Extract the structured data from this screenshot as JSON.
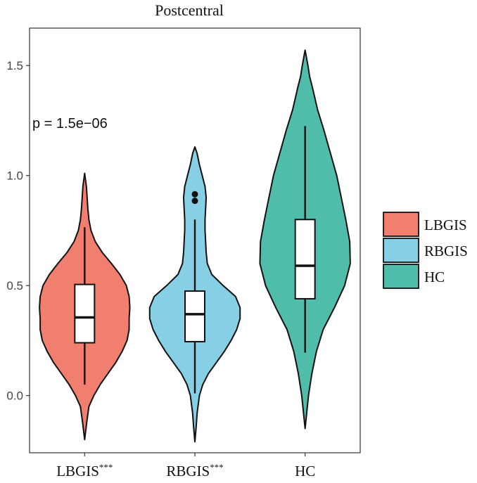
{
  "chart_data": {
    "type": "violin",
    "title": "Postcentral",
    "xlabel": "",
    "ylabel": "",
    "ylim": [
      -0.26,
      1.67
    ],
    "yticks": [
      0.0,
      0.5,
      1.0,
      1.5
    ],
    "ytick_labels": [
      "0.0",
      "0.5",
      "1.0",
      "1.5"
    ],
    "annotation": "p = 1.5e−06",
    "legend": {
      "position": "right",
      "entries": [
        {
          "label": "LBGIS",
          "color": "#F07F6F"
        },
        {
          "label": "RBGIS",
          "color": "#86CFE5"
        },
        {
          "label": "HC",
          "color": "#4FBDA9"
        }
      ]
    },
    "groups": [
      {
        "name": "LBGIS",
        "label": "LBGIS",
        "superscript": "***",
        "color": "#F07F6F",
        "box": {
          "whisker_low": 0.05,
          "q1": 0.24,
          "median": 0.355,
          "q3": 0.505,
          "whisker_high": 0.765
        },
        "outliers": [],
        "violin": [
          [
            -0.2,
            0.0
          ],
          [
            -0.12,
            0.03
          ],
          [
            -0.05,
            0.06
          ],
          [
            0.0,
            0.13
          ],
          [
            0.05,
            0.22
          ],
          [
            0.1,
            0.33
          ],
          [
            0.15,
            0.44
          ],
          [
            0.2,
            0.53
          ],
          [
            0.25,
            0.6
          ],
          [
            0.3,
            0.63
          ],
          [
            0.35,
            0.63
          ],
          [
            0.4,
            0.64
          ],
          [
            0.45,
            0.63
          ],
          [
            0.5,
            0.59
          ],
          [
            0.55,
            0.5
          ],
          [
            0.6,
            0.38
          ],
          [
            0.65,
            0.25
          ],
          [
            0.7,
            0.15
          ],
          [
            0.75,
            0.09
          ],
          [
            0.8,
            0.06
          ],
          [
            0.85,
            0.045
          ],
          [
            0.9,
            0.035
          ],
          [
            0.95,
            0.025
          ],
          [
            1.01,
            0.0
          ]
        ]
      },
      {
        "name": "RBGIS",
        "label": "RBGIS",
        "superscript": "***",
        "color": "#86CFE5",
        "box": {
          "whisker_low": 0.01,
          "q1": 0.245,
          "median": 0.37,
          "q3": 0.475,
          "whisker_high": 0.8
        },
        "outliers": [
          0.885,
          0.915
        ],
        "violin": [
          [
            -0.21,
            0.0
          ],
          [
            -0.15,
            0.02
          ],
          [
            -0.08,
            0.04
          ],
          [
            0.0,
            0.08
          ],
          [
            0.05,
            0.14
          ],
          [
            0.1,
            0.24
          ],
          [
            0.15,
            0.38
          ],
          [
            0.2,
            0.52
          ],
          [
            0.25,
            0.64
          ],
          [
            0.3,
            0.74
          ],
          [
            0.35,
            0.8
          ],
          [
            0.4,
            0.8
          ],
          [
            0.45,
            0.72
          ],
          [
            0.5,
            0.5
          ],
          [
            0.55,
            0.3
          ],
          [
            0.6,
            0.22
          ],
          [
            0.65,
            0.2
          ],
          [
            0.7,
            0.19
          ],
          [
            0.75,
            0.18
          ],
          [
            0.8,
            0.18
          ],
          [
            0.85,
            0.19
          ],
          [
            0.9,
            0.2
          ],
          [
            0.95,
            0.18
          ],
          [
            1.0,
            0.13
          ],
          [
            1.05,
            0.08
          ],
          [
            1.1,
            0.04
          ],
          [
            1.13,
            0.0
          ]
        ]
      },
      {
        "name": "HC",
        "label": "HC",
        "superscript": "",
        "color": "#4FBDA9",
        "box": {
          "whisker_low": 0.195,
          "q1": 0.44,
          "median": 0.59,
          "q3": 0.8,
          "whisker_high": 1.225
        },
        "outliers": [],
        "violin": [
          [
            -0.15,
            0.0
          ],
          [
            -0.1,
            0.02
          ],
          [
            0.0,
            0.06
          ],
          [
            0.1,
            0.12
          ],
          [
            0.2,
            0.2
          ],
          [
            0.3,
            0.32
          ],
          [
            0.4,
            0.52
          ],
          [
            0.5,
            0.7
          ],
          [
            0.6,
            0.8
          ],
          [
            0.7,
            0.79
          ],
          [
            0.8,
            0.72
          ],
          [
            0.9,
            0.64
          ],
          [
            1.0,
            0.56
          ],
          [
            1.1,
            0.45
          ],
          [
            1.2,
            0.34
          ],
          [
            1.3,
            0.22
          ],
          [
            1.4,
            0.13
          ],
          [
            1.45,
            0.08
          ],
          [
            1.5,
            0.05
          ],
          [
            1.57,
            0.0
          ]
        ]
      }
    ]
  }
}
